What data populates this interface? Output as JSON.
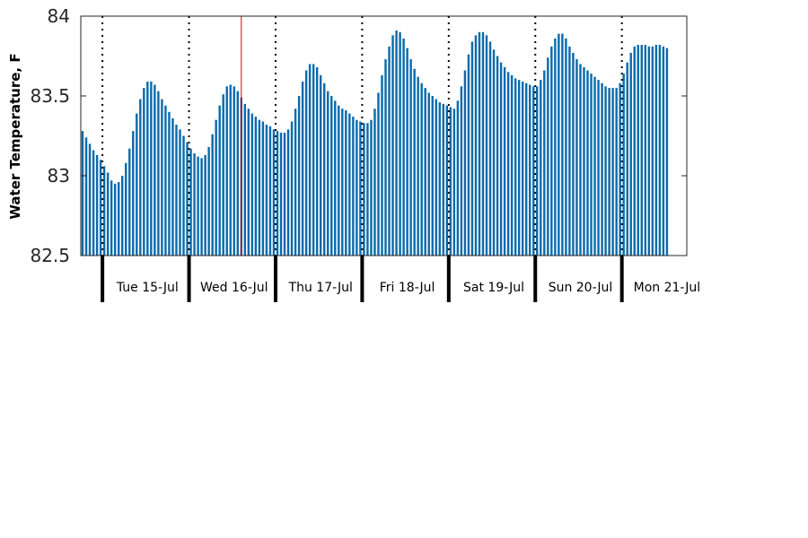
{
  "chart_data": {
    "type": "bar",
    "title": "",
    "xlabel": "",
    "ylabel": "Water Temperature, F",
    "ylim": [
      82.5,
      84
    ],
    "yticks": [
      "82.5",
      "83",
      "83.5",
      "84"
    ],
    "ytick_values": [
      82.5,
      83,
      83.5,
      84
    ],
    "grid": false,
    "bar_color": "#0a6aab",
    "day_boundary_color": "#000000",
    "current_time_marker_color": "#e8000b",
    "current_time_hour": 45,
    "day_labels": [
      "Tue 15-Jul",
      "Wed 16-Jul",
      "Thu 17-Jul",
      "Fri 18-Jul",
      "Sat 19-Jul",
      "Sun 20-Jul",
      "Mon 21-Jul"
    ],
    "day_boundary_hours": [
      6,
      30,
      54,
      78,
      102,
      126,
      150
    ],
    "hours_total": 168,
    "series": [
      {
        "values": [
          83.28,
          83.24,
          83.2,
          83.16,
          83.13,
          83.1,
          83.06,
          83.02,
          82.97,
          82.95,
          82.96,
          83.0,
          83.08,
          83.17,
          83.28,
          83.39,
          83.48,
          83.55,
          83.59,
          83.59,
          83.57,
          83.53,
          83.48,
          83.44,
          83.4,
          83.36,
          83.32,
          83.29,
          83.25,
          83.21,
          83.17,
          83.14,
          83.12,
          83.11,
          83.13,
          83.18,
          83.26,
          83.35,
          83.44,
          83.51,
          83.56,
          83.57,
          83.56,
          83.53,
          83.49,
          83.45,
          83.42,
          83.39,
          83.37,
          83.35,
          83.34,
          83.32,
          83.31,
          83.29,
          83.28,
          83.27,
          83.27,
          83.29,
          83.34,
          83.42,
          83.5,
          83.59,
          83.66,
          83.7,
          83.7,
          83.68,
          83.63,
          83.58,
          83.53,
          83.5,
          83.47,
          83.44,
          83.42,
          83.41,
          83.39,
          83.37,
          83.35,
          83.34,
          83.33,
          83.33,
          83.35,
          83.42,
          83.52,
          83.63,
          83.73,
          83.81,
          83.88,
          83.91,
          83.9,
          83.86,
          83.8,
          83.73,
          83.67,
          83.62,
          83.58,
          83.55,
          83.52,
          83.5,
          83.48,
          83.46,
          83.45,
          83.44,
          83.43,
          83.42,
          83.47,
          83.56,
          83.66,
          83.76,
          83.84,
          83.88,
          83.9,
          83.9,
          83.88,
          83.84,
          83.79,
          83.75,
          83.71,
          83.68,
          83.65,
          83.63,
          83.61,
          83.6,
          83.59,
          83.58,
          83.57,
          83.56,
          83.56,
          83.6,
          83.66,
          83.74,
          83.81,
          83.86,
          83.89,
          83.89,
          83.86,
          83.81,
          83.77,
          83.73,
          83.7,
          83.68,
          83.66,
          83.64,
          83.62,
          83.6,
          83.58,
          83.56,
          83.55,
          83.55,
          83.55,
          83.58,
          83.64,
          83.71,
          83.77,
          83.81,
          83.82,
          83.82,
          83.82,
          83.81,
          83.81,
          83.82,
          83.82,
          83.81,
          83.8
        ]
      }
    ]
  }
}
